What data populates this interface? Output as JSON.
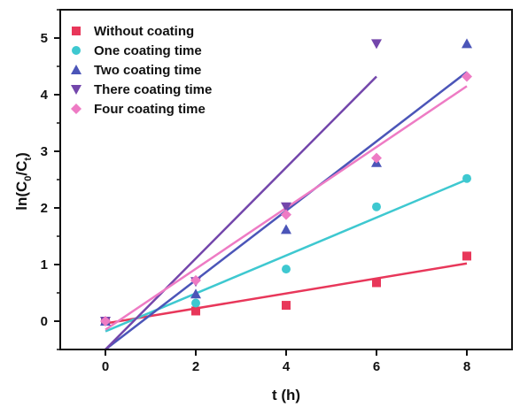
{
  "chart_data": {
    "type": "scatter",
    "title": "",
    "xlabel": "t (h)",
    "ylabel_parts": {
      "main": "ln(C",
      "sub0": "0",
      "slash": "/C",
      "subt": "t",
      "close": ")"
    },
    "xlim": [
      -1,
      9
    ],
    "ylim": [
      -0.5,
      5.5
    ],
    "xticks": [
      0,
      2,
      4,
      6,
      8
    ],
    "yticks": [
      0,
      1,
      2,
      3,
      4,
      5
    ],
    "grid": false,
    "legend_position": "top-left",
    "series": [
      {
        "name": "Without coating",
        "marker": "square",
        "color": "#e8375a",
        "x": [
          0,
          2,
          4,
          6,
          8
        ],
        "y": [
          0,
          0.18,
          0.28,
          0.68,
          1.15
        ],
        "fit": {
          "x": [
            0,
            8
          ],
          "y": [
            -0.04,
            1.02
          ]
        }
      },
      {
        "name": "One coating time",
        "marker": "circle",
        "color": "#3ec8d0",
        "x": [
          0,
          2,
          4,
          6,
          8
        ],
        "y": [
          0,
          0.32,
          0.92,
          2.02,
          2.52
        ],
        "fit": {
          "x": [
            0,
            8
          ],
          "y": [
            -0.18,
            2.5
          ]
        }
      },
      {
        "name": "Two coating time",
        "marker": "triangle-up",
        "color": "#4b55b8",
        "x": [
          0,
          2,
          4,
          6,
          8
        ],
        "y": [
          0,
          0.48,
          1.62,
          2.8,
          4.9
        ],
        "fit": {
          "x": [
            0,
            8
          ],
          "y": [
            -0.5,
            4.4
          ]
        }
      },
      {
        "name": "There coating time",
        "marker": "triangle-down",
        "color": "#7346ab",
        "x": [
          0,
          2,
          4,
          6,
          8
        ],
        "y": [
          0,
          0.7,
          2.02,
          4.9,
          null
        ],
        "fit": {
          "x": [
            0,
            6
          ],
          "y": [
            -0.5,
            4.32
          ]
        }
      },
      {
        "name": "Four coating time",
        "marker": "diamond",
        "color": "#ee7bc4",
        "x": [
          0,
          2,
          4,
          6,
          8
        ],
        "y": [
          0,
          0.72,
          1.88,
          2.88,
          4.32
        ],
        "fit": {
          "x": [
            0,
            8
          ],
          "y": [
            -0.15,
            4.15
          ]
        }
      }
    ]
  }
}
